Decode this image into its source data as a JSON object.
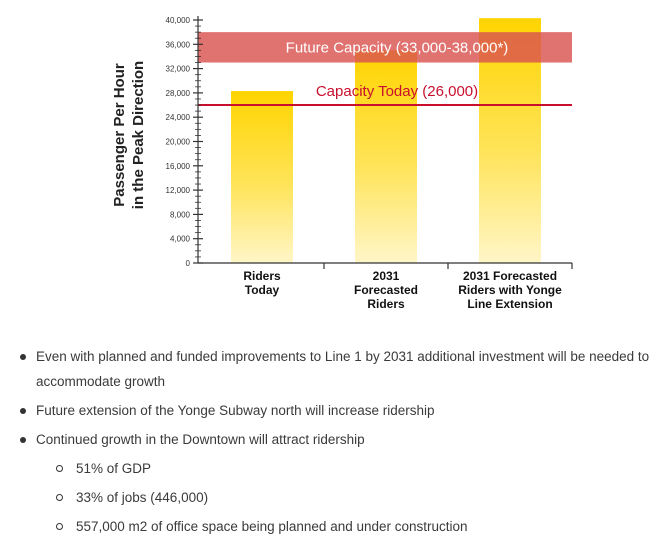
{
  "chart_data": {
    "type": "bar",
    "ylabel_lines": [
      "Passenger Per Hour",
      "in the Peak Direction"
    ],
    "ylim": [
      0,
      40000
    ],
    "yticks": [
      0,
      4000,
      8000,
      12000,
      16000,
      20000,
      24000,
      28000,
      32000,
      36000,
      40000
    ],
    "ytick_labels": [
      "0",
      "4,000",
      "8,000",
      "12,000",
      "16,000",
      "20,000",
      "24,000",
      "28,000",
      "32,000",
      "36,000",
      "40,000"
    ],
    "categories": [
      [
        "Riders",
        "Today"
      ],
      [
        "2031",
        "Forecasted",
        "Riders"
      ],
      [
        "2031 Forecasted",
        "Riders with Yonge",
        "Line Extension"
      ]
    ],
    "values": [
      28300,
      35000,
      40300
    ],
    "reference_band": {
      "label": "Future Capacity (33,000-38,000*)",
      "low": 33000,
      "high": 38000,
      "color": "#d9534f"
    },
    "reference_line": {
      "label": "Capacity Today (26,000)",
      "value": 26000,
      "color": "#c8102e"
    },
    "bar_color_top": "#ffd400",
    "bar_color_bottom": "#fff6c8"
  },
  "bullets": [
    {
      "text": "Even with planned and funded improvements to Line 1 by 2031 additional investment will be needed to accommodate growth"
    },
    {
      "text": "Future extension of the Yonge Subway north will increase ridership"
    },
    {
      "text": "Continued growth in the Downtown will attract ridership",
      "sub": [
        "51% of GDP",
        "33% of jobs (446,000)",
        "557,000 m2 of office space being planned and under construction"
      ]
    }
  ]
}
